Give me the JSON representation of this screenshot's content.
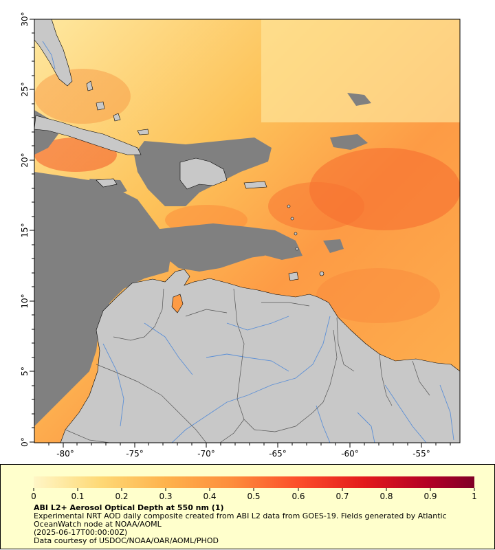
{
  "map": {
    "lon_ticks": [
      "-80°",
      "-75°",
      "-70°",
      "-65°",
      "-60°",
      "-55°"
    ],
    "lat_ticks": [
      "30°",
      "25°",
      "20°",
      "15°",
      "10°",
      "5°",
      "0°"
    ],
    "colors": {
      "land": "#c8c8c8",
      "no_data": "#808080",
      "rivers": "#5b8fd6",
      "borders": "#555555",
      "coast": "#000000"
    },
    "layers": [
      "aerosol-field",
      "no-data-mask",
      "land",
      "rivers",
      "country-borders"
    ]
  },
  "colorbar": {
    "ticks": [
      "0",
      "0.1",
      "0.2",
      "0.3",
      "0.4",
      "0.5",
      "0.6",
      "0.7",
      "0.8",
      "0.9",
      "1"
    ],
    "colors": [
      "#fff6c6",
      "#fed976",
      "#feb24c",
      "#fd8d3c",
      "#fc4e2a",
      "#e31a1c",
      "#b10026",
      "#800026"
    ]
  },
  "caption": {
    "title": "ABI L2+ Aerosol Optical Depth at 550 nm (1)",
    "desc_line1": "Experimental NRT AOD daily composite created from ABI L2 data from GOES-19. Fields generated by Atlantic",
    "desc_line2": "OceanWatch node at NOAA/AOML",
    "date": "(2025-06-17T00:00:00Z)",
    "credit": "Data courtesy of USDOC/NOAA/OAR/AOML/PHOD"
  }
}
